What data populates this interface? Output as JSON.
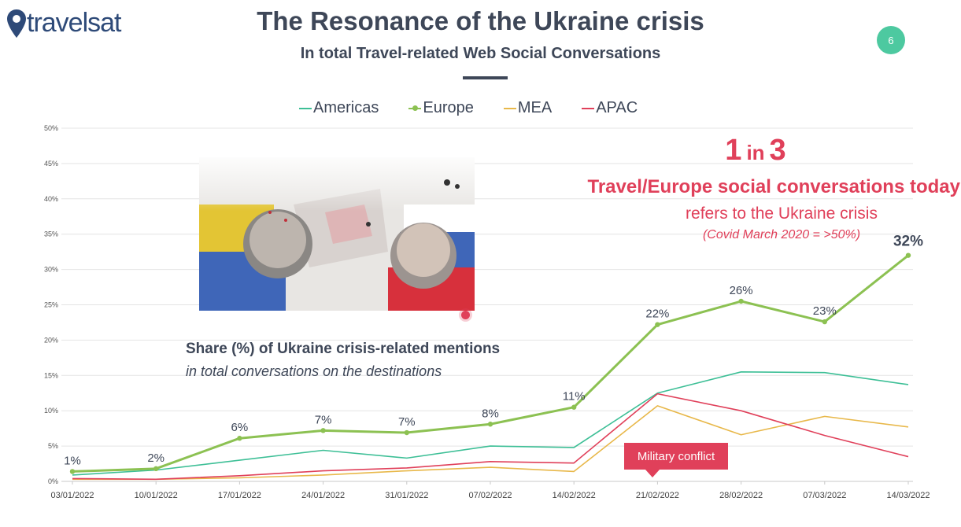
{
  "header": {
    "logo_text": "travelsat",
    "title": "The Resonance of the Ukraine crisis",
    "subtitle": "In total Travel-related Web Social Conversations",
    "page_number": "6"
  },
  "callout": {
    "n1": "1",
    "in": "in",
    "n2": "3",
    "line1": "Travel/Europe social conversations today",
    "line2": "refers to the Ukraine crisis",
    "line3": "(Covid March 2020 = >50%)"
  },
  "share_label": {
    "title": "Share (%) of Ukraine crisis-related mentions",
    "subtitle": "in total conversations on the destinations"
  },
  "military_label": "Military conflict",
  "colors": {
    "americas": "#3dbf96",
    "europe": "#8cc152",
    "mea": "#e8b84a",
    "apac": "#e0405a",
    "text": "#3e4758",
    "grid": "#e4e4e4"
  },
  "chart_data": {
    "type": "line",
    "categories": [
      "03/01/2022",
      "10/01/2022",
      "17/01/2022",
      "24/01/2022",
      "31/01/2022",
      "07/02/2022",
      "14/02/2022",
      "21/02/2022",
      "28/02/2022",
      "07/03/2022",
      "14/03/2022"
    ],
    "series": [
      {
        "name": "Americas",
        "color": "#3dbf96",
        "values": [
          0.9,
          1.6,
          3.0,
          4.4,
          3.3,
          5.0,
          4.8,
          12.5,
          15.5,
          15.4,
          13.7
        ]
      },
      {
        "name": "Europe",
        "color": "#8cc152",
        "values": [
          1.4,
          1.8,
          6.1,
          7.2,
          6.9,
          8.1,
          10.5,
          22.2,
          25.5,
          22.6,
          32.0
        ]
      },
      {
        "name": "MEA",
        "color": "#e8b84a",
        "values": [
          0.3,
          0.3,
          0.5,
          0.9,
          1.5,
          2.0,
          1.4,
          10.7,
          6.6,
          9.2,
          7.7
        ]
      },
      {
        "name": "APAC",
        "color": "#e0405a",
        "values": [
          0.4,
          0.3,
          0.8,
          1.5,
          1.9,
          2.8,
          2.6,
          12.4,
          10.0,
          6.5,
          3.5
        ]
      }
    ],
    "data_labels": {
      "series": "Europe",
      "labels": [
        "1%",
        "2%",
        "6%",
        "7%",
        "7%",
        "8%",
        "11%",
        "22%",
        "26%",
        "23%",
        "32%"
      ]
    },
    "y_ticks": [
      "0%",
      "5%",
      "10%",
      "15%",
      "20%",
      "25%",
      "30%",
      "35%",
      "40%",
      "45%",
      "50%"
    ],
    "ylim": [
      0,
      50
    ],
    "grid": true,
    "legend_position": "top"
  }
}
